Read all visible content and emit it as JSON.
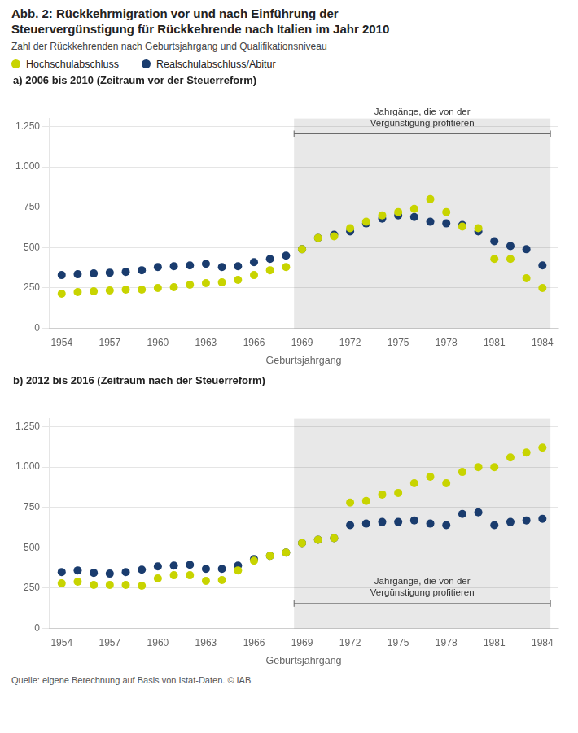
{
  "title": [
    "Abb. 2: Rückkehrmigration vor und nach Einführung der",
    "Steuervergünstigung für Rückkehrende nach Italien im Jahr 2010"
  ],
  "subtitle": "Zahl der Rückkehrenden nach Geburtsjahrgang und Qualifikationsniveau",
  "source": "Quelle: eigene Berechnung auf Basis von Istat-Daten. © IAB",
  "chart_data": [
    {
      "type": "scatter",
      "title": "a) 2006 bis 2010 (Zeitraum vor der Steuerreform)",
      "x": [
        1954,
        1955,
        1956,
        1957,
        1958,
        1959,
        1960,
        1961,
        1962,
        1963,
        1964,
        1965,
        1966,
        1967,
        1968,
        1969,
        1970,
        1971,
        1972,
        1973,
        1974,
        1975,
        1976,
        1977,
        1978,
        1979,
        1980,
        1981,
        1982,
        1983,
        1984
      ],
      "series": [
        {
          "name": "Hochschulabschluss",
          "color": "#c8d400",
          "values": [
            215,
            225,
            230,
            235,
            240,
            240,
            250,
            255,
            270,
            280,
            285,
            300,
            330,
            360,
            380,
            490,
            560,
            570,
            620,
            660,
            700,
            720,
            740,
            800,
            720,
            630,
            620,
            430,
            430,
            310,
            250
          ]
        },
        {
          "name": "Realschulabschluss/Abitur",
          "color": "#1a3c6e",
          "values": [
            330,
            335,
            340,
            345,
            350,
            360,
            380,
            385,
            390,
            400,
            380,
            385,
            410,
            430,
            450,
            490,
            560,
            580,
            600,
            650,
            680,
            700,
            690,
            660,
            650,
            640,
            600,
            540,
            510,
            490,
            390
          ]
        }
      ],
      "xlabel": "Geburtsjahrgang",
      "xlim": [
        1953.2,
        1985
      ],
      "ylim": [
        0,
        1300
      ],
      "xticks": [
        1954,
        1957,
        1960,
        1963,
        1966,
        1969,
        1972,
        1975,
        1978,
        1981,
        1984
      ],
      "yticks": [
        0,
        250,
        500,
        750,
        {
          "value": 1000,
          "label": "1.000"
        },
        {
          "value": 1250,
          "label": "1.250"
        }
      ],
      "grid": "y",
      "legend": "top",
      "shaded": {
        "from": 1968.5,
        "to": 1984.5,
        "color": "#e8e8e8"
      },
      "annotations": [
        {
          "text": [
            "Jahrgänge, die von der",
            "Vergünstigung profitieren"
          ],
          "x_from": 1968.5,
          "x_to": 1984.5,
          "y": 1205
        }
      ]
    },
    {
      "type": "scatter",
      "title": "b) 2012 bis 2016 (Zeitraum nach der Steuerreform)",
      "x": [
        1954,
        1955,
        1956,
        1957,
        1958,
        1959,
        1960,
        1961,
        1962,
        1963,
        1964,
        1965,
        1966,
        1967,
        1968,
        1969,
        1970,
        1971,
        1972,
        1973,
        1974,
        1975,
        1976,
        1977,
        1978,
        1979,
        1980,
        1981,
        1982,
        1983,
        1984
      ],
      "series": [
        {
          "name": "Hochschulabschluss",
          "color": "#c8d400",
          "values": [
            280,
            290,
            270,
            270,
            270,
            265,
            310,
            330,
            330,
            295,
            300,
            360,
            420,
            450,
            470,
            530,
            550,
            560,
            780,
            790,
            830,
            840,
            900,
            940,
            900,
            970,
            1000,
            1000,
            1060,
            1090,
            1120
          ]
        },
        {
          "name": "Realschulabschluss/Abitur",
          "color": "#1a3c6e",
          "values": [
            350,
            360,
            345,
            340,
            350,
            365,
            385,
            390,
            395,
            370,
            370,
            390,
            430,
            450,
            470,
            530,
            550,
            560,
            640,
            650,
            660,
            660,
            670,
            650,
            640,
            710,
            720,
            640,
            660,
            670,
            680
          ]
        }
      ],
      "xlabel": "Geburtsjahrgang",
      "xlim": [
        1953.2,
        1985
      ],
      "ylim": [
        0,
        1300
      ],
      "xticks": [
        1954,
        1957,
        1960,
        1963,
        1966,
        1969,
        1972,
        1975,
        1978,
        1981,
        1984
      ],
      "yticks": [
        0,
        250,
        500,
        750,
        {
          "value": 1000,
          "label": "1.000"
        },
        {
          "value": 1250,
          "label": "1.250"
        }
      ],
      "grid": "y",
      "shaded": {
        "from": 1968.5,
        "to": 1984.5,
        "color": "#e8e8e8"
      },
      "annotations": [
        {
          "text": [
            "Jahrgänge, die von der",
            "Vergünstigung profitieren"
          ],
          "x_from": 1968.5,
          "x_to": 1984.5,
          "y": 155
        }
      ]
    }
  ]
}
